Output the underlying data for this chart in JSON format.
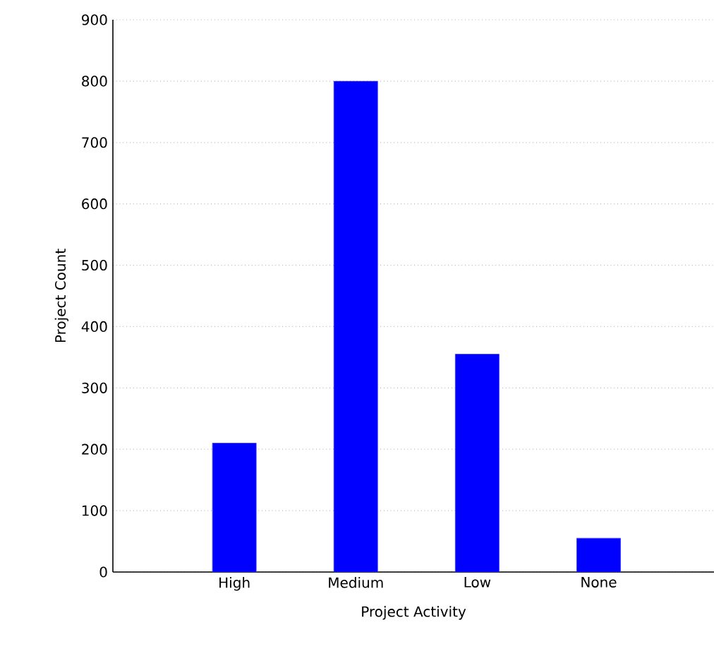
{
  "chart_data": {
    "type": "bar",
    "xlabel": "Project Activity",
    "ylabel": "Project Count",
    "categories": [
      "High",
      "Medium",
      "Low",
      "None"
    ],
    "values": [
      210,
      800,
      355,
      55
    ],
    "color": "#0000ff",
    "ylim": [
      0,
      900
    ],
    "yticks": [
      0,
      100,
      200,
      300,
      400,
      500,
      600,
      700,
      800,
      900
    ],
    "grid": "y"
  }
}
